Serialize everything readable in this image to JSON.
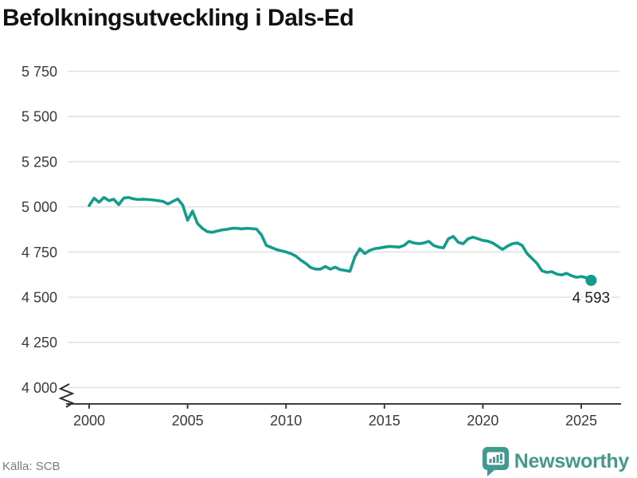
{
  "header": {
    "title": "Befolkningsutveckling i Dals-Ed"
  },
  "footer": {
    "source": "Källa: SCB",
    "brand_name": "Newsworthy"
  },
  "colors": {
    "line": "#129c8c",
    "dot": "#129c8c",
    "grid": "#e0e0e0",
    "axis": "#3d3d3d",
    "tick_text": "#3a3a3a",
    "title_text": "#111111",
    "source_text": "#7b7b7b",
    "brand_teal": "#449890",
    "end_label_text": "#1e1e1e"
  },
  "chart_data": {
    "type": "line",
    "title": "Befolkningsutveckling i Dals-Ed",
    "xlabel": "",
    "ylabel": "",
    "grid": true,
    "legend": false,
    "axis_break_y": true,
    "ylim": [
      4000,
      5750
    ],
    "xlim": [
      1999,
      2027
    ],
    "y_tick_values": [
      5750,
      5500,
      5250,
      5000,
      4750,
      4500,
      4250,
      4000
    ],
    "y_tick_labels": [
      "5 750",
      "5 500",
      "5 250",
      "5 000",
      "4 750",
      "4 500",
      "4 250",
      "4 000"
    ],
    "x_tick_values": [
      2000,
      2005,
      2010,
      2015,
      2020,
      2025
    ],
    "x_tick_labels": [
      "2000",
      "2005",
      "2010",
      "2015",
      "2020",
      "2025"
    ],
    "x_start": 2000,
    "x_step": 0.25,
    "values": [
      5007,
      5048,
      5025,
      5052,
      5034,
      5042,
      5012,
      5048,
      5052,
      5044,
      5040,
      5042,
      5040,
      5038,
      5034,
      5030,
      5016,
      5030,
      5043,
      5010,
      4926,
      4976,
      4908,
      4881,
      4863,
      4859,
      4866,
      4872,
      4875,
      4881,
      4881,
      4878,
      4881,
      4879,
      4877,
      4845,
      4786,
      4775,
      4764,
      4757,
      4750,
      4741,
      4727,
      4705,
      4687,
      4664,
      4655,
      4655,
      4670,
      4655,
      4666,
      4652,
      4648,
      4643,
      4723,
      4768,
      4741,
      4759,
      4768,
      4772,
      4777,
      4781,
      4779,
      4777,
      4786,
      4809,
      4800,
      4796,
      4800,
      4809,
      4786,
      4777,
      4773,
      4823,
      4836,
      4804,
      4796,
      4823,
      4832,
      4823,
      4814,
      4810,
      4800,
      4782,
      4764,
      4782,
      4796,
      4800,
      4786,
      4741,
      4714,
      4687,
      4646,
      4637,
      4641,
      4628,
      4623,
      4632,
      4619,
      4610,
      4614,
      4608,
      4593
    ],
    "end_label": "4 593",
    "end_value": 4593
  }
}
